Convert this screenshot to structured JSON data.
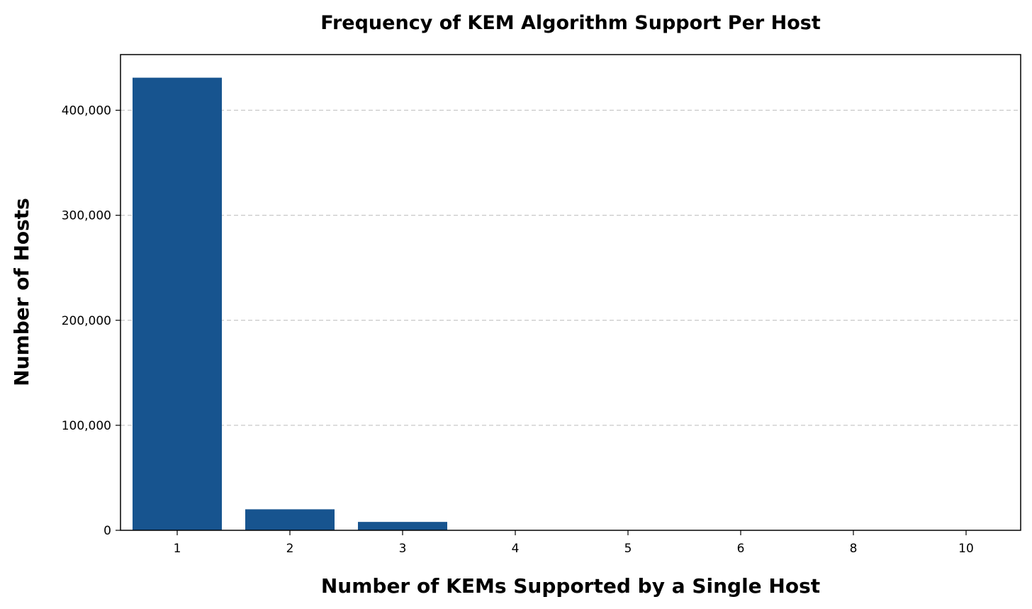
{
  "chart_data": {
    "type": "bar",
    "title": "Frequency of KEM Algorithm Support Per Host",
    "xlabel": "Number of KEMs Supported by a Single Host",
    "ylabel": "Number of Hosts",
    "categories": [
      "1",
      "2",
      "3",
      "4",
      "5",
      "6",
      "8",
      "10"
    ],
    "values": [
      431000,
      20000,
      8000,
      200,
      100,
      50,
      30,
      20
    ],
    "ylim": [
      0,
      453000
    ],
    "yticks": [
      0,
      100000,
      200000,
      300000,
      400000
    ],
    "ytick_labels": [
      "0",
      "100,000",
      "200,000",
      "300,000",
      "400,000"
    ],
    "grid": "horizontal dashed",
    "bar_color": "#17548f"
  }
}
